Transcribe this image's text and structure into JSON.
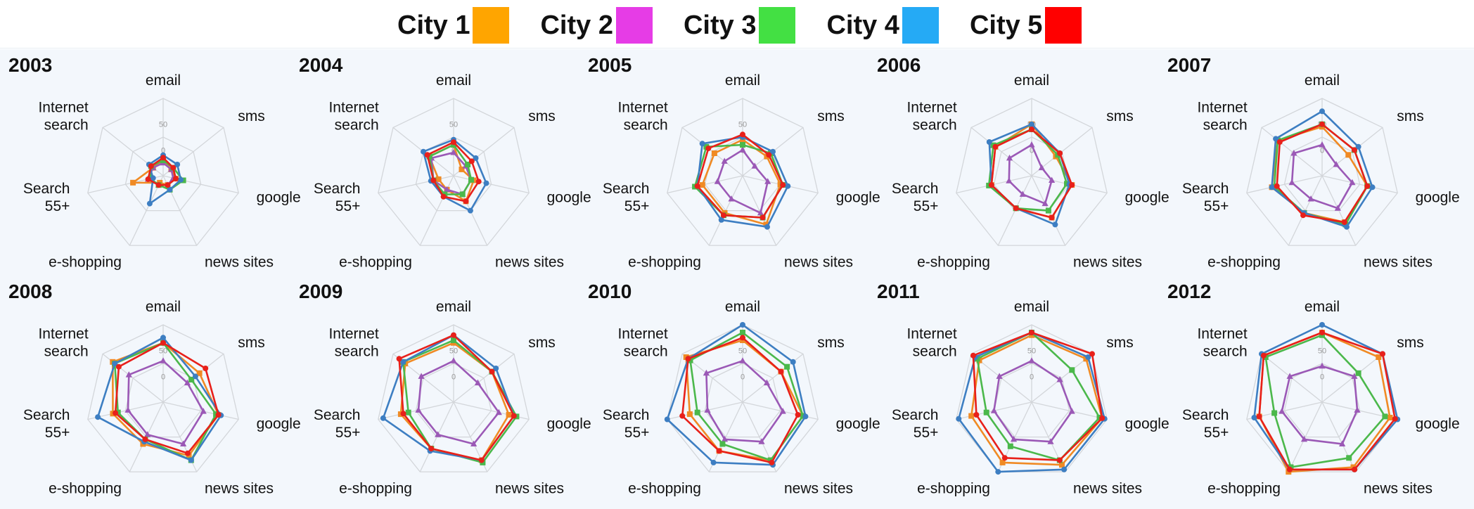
{
  "legend": {
    "items": [
      {
        "label": "City 1",
        "color": "#ffa500"
      },
      {
        "label": "City 2",
        "color": "#e63ce6"
      },
      {
        "label": "City 3",
        "color": "#43e043"
      },
      {
        "label": "City 4",
        "color": "#25aaf5"
      },
      {
        "label": "City 5",
        "color": "#ff0000"
      }
    ]
  },
  "chart_data": {
    "type": "radar",
    "axes": [
      "email",
      "sms",
      "google",
      "news sites",
      "e-shopping",
      "Search 55+",
      "Internet search"
    ],
    "axis_label_lines": [
      [
        "email"
      ],
      [
        "sms"
      ],
      [
        "google"
      ],
      [
        "news sites"
      ],
      [
        "e-shopping"
      ],
      [
        "Search",
        "55+"
      ],
      [
        "Internet",
        "search"
      ]
    ],
    "ticks": [
      0,
      50
    ],
    "rlim": [
      -50,
      100
    ],
    "grid": true,
    "legend_placement": "top",
    "series_names": [
      "City 1",
      "City 2",
      "City 3",
      "City 4",
      "City 5"
    ],
    "line_colors": [
      "#f08a24",
      "#9b59b6",
      "#4bb84b",
      "#3d7ec2",
      "#e8201a"
    ],
    "markers": [
      "square",
      "triangle",
      "square",
      "circle",
      "circle"
    ],
    "panels": [
      {
        "year": "2003",
        "values": [
          [
            -20,
            -30,
            -25,
            -30,
            -35,
            10,
            -25
          ],
          [
            -25,
            -30,
            -30,
            -30,
            -30,
            -20,
            -25
          ],
          [
            -20,
            -25,
            -10,
            -20,
            -30,
            -25,
            -20
          ],
          [
            -10,
            -15,
            -15,
            -20,
            10,
            -30,
            -15
          ],
          [
            -15,
            -25,
            -25,
            -30,
            -30,
            -20,
            -20
          ]
        ]
      },
      {
        "year": "2004",
        "values": [
          [
            10,
            -30,
            -10,
            5,
            -20,
            -20,
            10
          ],
          [
            -5,
            -20,
            -15,
            -10,
            -20,
            -10,
            5
          ],
          [
            10,
            -15,
            -15,
            -10,
            -10,
            -10,
            10
          ],
          [
            20,
            5,
            15,
            25,
            -5,
            -5,
            25
          ],
          [
            15,
            -5,
            0,
            5,
            -5,
            -10,
            15
          ]
        ]
      },
      {
        "year": "2005",
        "values": [
          [
            20,
            10,
            25,
            55,
            30,
            30,
            20
          ],
          [
            0,
            -20,
            0,
            30,
            0,
            0,
            -5
          ],
          [
            10,
            20,
            30,
            40,
            35,
            45,
            40
          ],
          [
            25,
            25,
            40,
            60,
            45,
            40,
            50
          ],
          [
            30,
            15,
            30,
            40,
            35,
            40,
            35
          ]
        ]
      },
      {
        "year": "2006",
        "values": [
          [
            50,
            10,
            30,
            40,
            20,
            30,
            40
          ],
          [
            10,
            -25,
            -10,
            10,
            -10,
            -5,
            5
          ],
          [
            40,
            15,
            20,
            25,
            20,
            35,
            45
          ],
          [
            50,
            20,
            25,
            55,
            20,
            30,
            55
          ],
          [
            40,
            20,
            30,
            40,
            20,
            30,
            40
          ]
        ]
      },
      {
        "year": "2007",
        "values": [
          [
            45,
            15,
            40,
            50,
            30,
            50,
            60
          ],
          [
            10,
            -15,
            10,
            20,
            0,
            10,
            20
          ],
          [
            50,
            30,
            40,
            55,
            30,
            45,
            60
          ],
          [
            75,
            40,
            50,
            60,
            30,
            50,
            65
          ],
          [
            50,
            30,
            40,
            50,
            35,
            40,
            55
          ]
        ]
      },
      {
        "year": "2008",
        "values": [
          [
            65,
            40,
            60,
            65,
            40,
            50,
            75
          ],
          [
            30,
            10,
            30,
            40,
            20,
            20,
            35
          ],
          [
            65,
            20,
            55,
            75,
            30,
            40,
            70
          ],
          [
            75,
            30,
            65,
            75,
            35,
            80,
            70
          ],
          [
            65,
            55,
            60,
            60,
            30,
            45,
            60
          ]
        ]
      },
      {
        "year": "2009",
        "values": [
          [
            65,
            45,
            60,
            75,
            50,
            55,
            70
          ],
          [
            30,
            10,
            40,
            40,
            20,
            20,
            30
          ],
          [
            70,
            45,
            75,
            80,
            50,
            40,
            75
          ],
          [
            80,
            55,
            70,
            75,
            55,
            90,
            75
          ],
          [
            80,
            45,
            70,
            75,
            50,
            50,
            85
          ]
        ]
      },
      {
        "year": "2010",
        "values": [
          [
            70,
            45,
            70,
            75,
            55,
            55,
            90
          ],
          [
            30,
            10,
            30,
            35,
            30,
            20,
            40
          ],
          [
            85,
            60,
            70,
            75,
            40,
            40,
            80
          ],
          [
            100,
            75,
            75,
            85,
            80,
            100,
            85
          ],
          [
            75,
            45,
            60,
            80,
            55,
            70,
            85
          ]
        ]
      },
      {
        "year": "2011",
        "values": [
          [
            80,
            85,
            90,
            85,
            80,
            70,
            80
          ],
          [
            30,
            20,
            30,
            35,
            30,
            25,
            30
          ],
          [
            85,
            50,
            85,
            75,
            45,
            40,
            85
          ],
          [
            85,
            90,
            95,
            95,
            100,
            95,
            90
          ],
          [
            85,
            100,
            90,
            75,
            70,
            60,
            95
          ]
        ]
      },
      {
        "year": "2012",
        "values": [
          [
            85,
            90,
            85,
            90,
            100,
            75,
            95
          ],
          [
            20,
            30,
            20,
            40,
            30,
            30,
            30
          ],
          [
            80,
            40,
            75,
            70,
            90,
            45,
            90
          ],
          [
            100,
            100,
            100,
            95,
            95,
            85,
            100
          ],
          [
            85,
            100,
            95,
            95,
            95,
            75,
            95
          ]
        ]
      }
    ]
  }
}
